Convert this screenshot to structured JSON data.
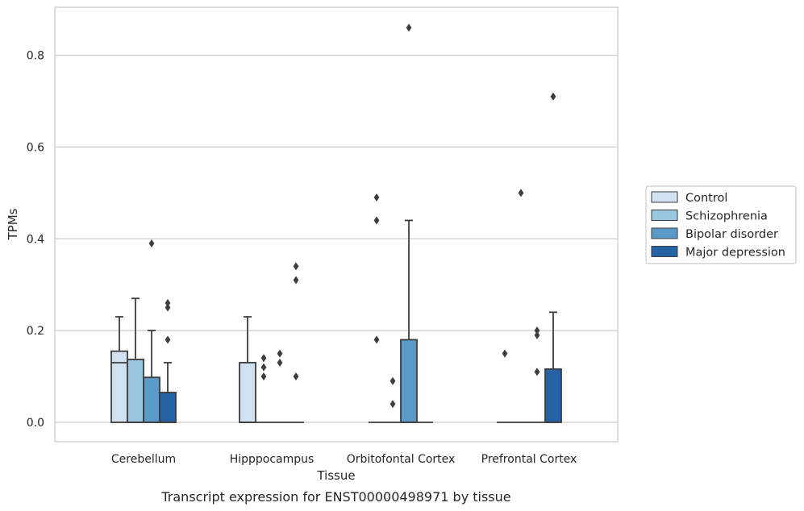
{
  "chart_data": {
    "type": "boxplot",
    "xlabel": "Tissue",
    "ylabel": "TPMs",
    "caption": "Transcript expression for ENST00000498971 by tissue",
    "ylim": [
      -0.042,
      0.905
    ],
    "yticks": [
      0.0,
      0.2,
      0.4,
      0.6,
      0.8
    ],
    "ytick_labels": [
      "0.0",
      "0.2",
      "0.4",
      "0.6",
      "0.8"
    ],
    "grid": "horizontal",
    "legend_position": "right",
    "categories": [
      "Cerebellum",
      "Hipppocampus",
      "Orbitofontal Cortex",
      "Prefrontal Cortex"
    ],
    "series": [
      {
        "name": "Control",
        "color": "#d0e1f1",
        "boxes": [
          {
            "q1": 0.0,
            "median": 0.13,
            "q3": 0.155,
            "whisker_low": 0.0,
            "whisker_high": 0.23,
            "outliers": []
          },
          {
            "q1": 0.0,
            "median": 0.0,
            "q3": 0.13,
            "whisker_low": 0.0,
            "whisker_high": 0.23,
            "outliers": []
          },
          {
            "q1": 0.0,
            "median": 0.0,
            "q3": 0.0,
            "whisker_low": 0.0,
            "whisker_high": 0.0,
            "outliers": [
              0.18,
              0.44,
              0.49
            ]
          },
          {
            "q1": 0.0,
            "median": 0.0,
            "q3": 0.0,
            "whisker_low": 0.0,
            "whisker_high": 0.0,
            "outliers": [
              0.15
            ]
          }
        ]
      },
      {
        "name": "Schizophrenia",
        "color": "#9ac7e0",
        "boxes": [
          {
            "q1": 0.0,
            "median": 0.0,
            "q3": 0.137,
            "whisker_low": 0.0,
            "whisker_high": 0.27,
            "outliers": []
          },
          {
            "q1": 0.0,
            "median": 0.0,
            "q3": 0.0,
            "whisker_low": 0.0,
            "whisker_high": 0.0,
            "outliers": [
              0.1,
              0.12,
              0.14
            ]
          },
          {
            "q1": 0.0,
            "median": 0.0,
            "q3": 0.0,
            "whisker_low": 0.0,
            "whisker_high": 0.0,
            "outliers": [
              0.04,
              0.09
            ]
          },
          {
            "q1": 0.0,
            "median": 0.0,
            "q3": 0.0,
            "whisker_low": 0.0,
            "whisker_high": 0.0,
            "outliers": [
              0.5
            ]
          }
        ]
      },
      {
        "name": "Bipolar disorder",
        "color": "#5a9ac8",
        "boxes": [
          {
            "q1": 0.0,
            "median": 0.0,
            "q3": 0.098,
            "whisker_low": 0.0,
            "whisker_high": 0.2,
            "outliers": [
              0.39
            ]
          },
          {
            "q1": 0.0,
            "median": 0.0,
            "q3": 0.0,
            "whisker_low": 0.0,
            "whisker_high": 0.0,
            "outliers": [
              0.13,
              0.15
            ]
          },
          {
            "q1": 0.0,
            "median": 0.0,
            "q3": 0.18,
            "whisker_low": 0.0,
            "whisker_high": 0.44,
            "outliers": [
              0.86
            ]
          },
          {
            "q1": 0.0,
            "median": 0.0,
            "q3": 0.0,
            "whisker_low": 0.0,
            "whisker_high": 0.0,
            "outliers": [
              0.11,
              0.19,
              0.2
            ]
          }
        ]
      },
      {
        "name": "Major depression",
        "color": "#2562a5",
        "boxes": [
          {
            "q1": 0.0,
            "median": 0.0,
            "q3": 0.065,
            "whisker_low": 0.0,
            "whisker_high": 0.13,
            "outliers": [
              0.18,
              0.25,
              0.26
            ]
          },
          {
            "q1": 0.0,
            "median": 0.0,
            "q3": 0.0,
            "whisker_low": 0.0,
            "whisker_high": 0.0,
            "outliers": [
              0.1,
              0.31,
              0.34
            ]
          },
          {
            "q1": 0.0,
            "median": 0.0,
            "q3": 0.0,
            "whisker_low": 0.0,
            "whisker_high": 0.0,
            "outliers": []
          },
          {
            "q1": 0.0,
            "median": 0.0,
            "q3": 0.116,
            "whisker_low": 0.0,
            "whisker_high": 0.24,
            "outliers": [
              0.71
            ]
          }
        ]
      }
    ]
  }
}
